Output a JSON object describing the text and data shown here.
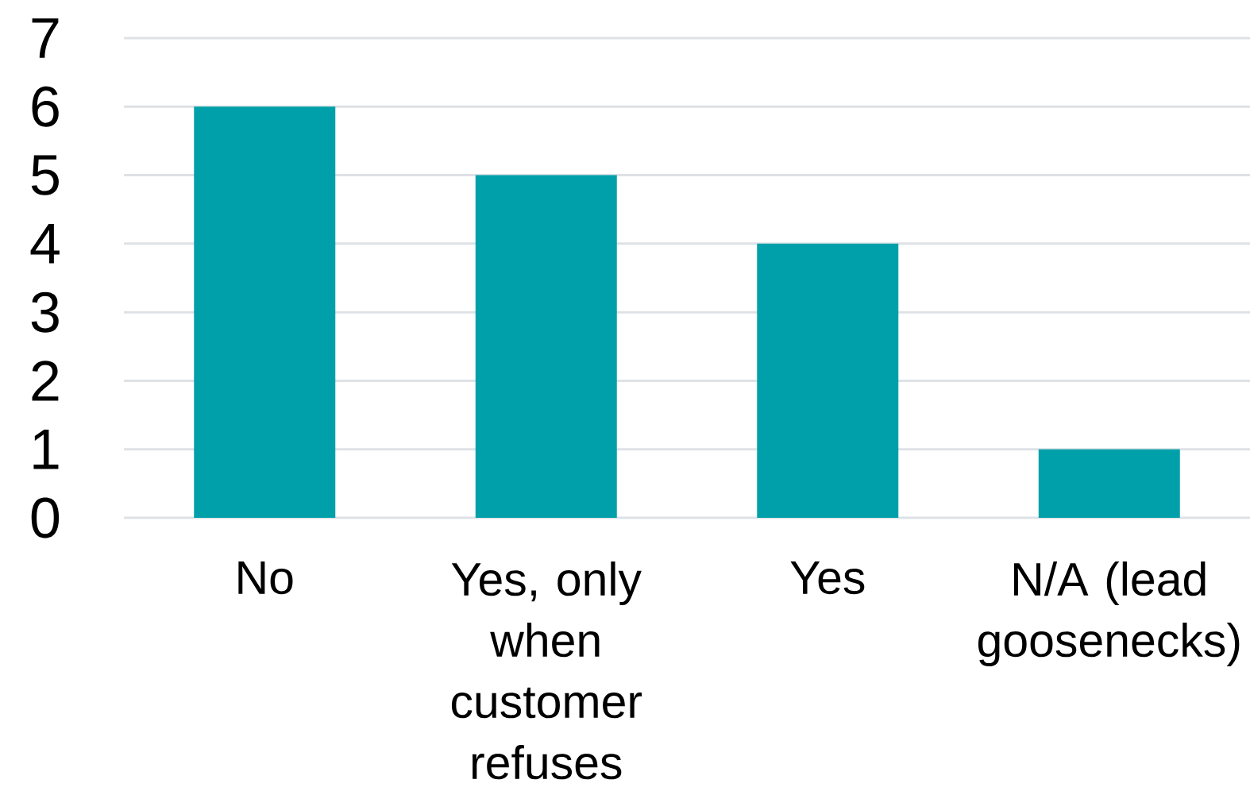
{
  "chart_data": {
    "type": "bar",
    "categories": [
      "No",
      "Yes, only when customer refuses",
      "Yes",
      "N/A (lead goosenecks)"
    ],
    "values": [
      6,
      5,
      4,
      1
    ],
    "color": "#00a0aa",
    "ylim": [
      0,
      7
    ],
    "yticks": [
      0,
      1,
      2,
      3,
      4,
      5,
      6,
      7
    ],
    "grid": "y"
  }
}
